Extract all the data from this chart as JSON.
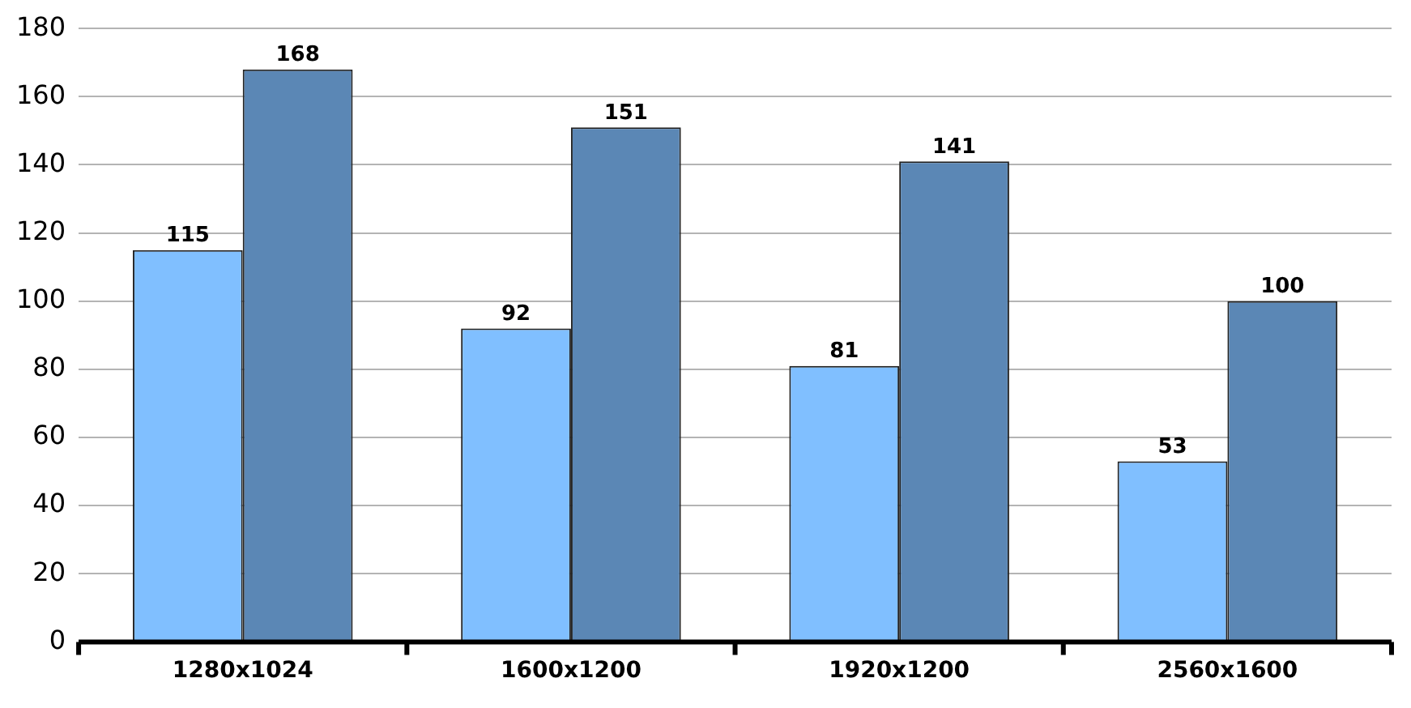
{
  "chart_data": {
    "type": "bar",
    "categories": [
      "1280x1024",
      "1600x1200",
      "1920x1200",
      "2560x1600"
    ],
    "series": [
      {
        "color": "#80bfff",
        "values": [
          115,
          92,
          81,
          53
        ]
      },
      {
        "color": "#5b87b5",
        "values": [
          168,
          151,
          141,
          100
        ]
      }
    ],
    "ylim": [
      0,
      180
    ],
    "yticks": [
      0,
      20,
      40,
      60,
      80,
      100,
      120,
      140,
      160,
      180
    ],
    "grid": "y",
    "data_labels": true
  }
}
